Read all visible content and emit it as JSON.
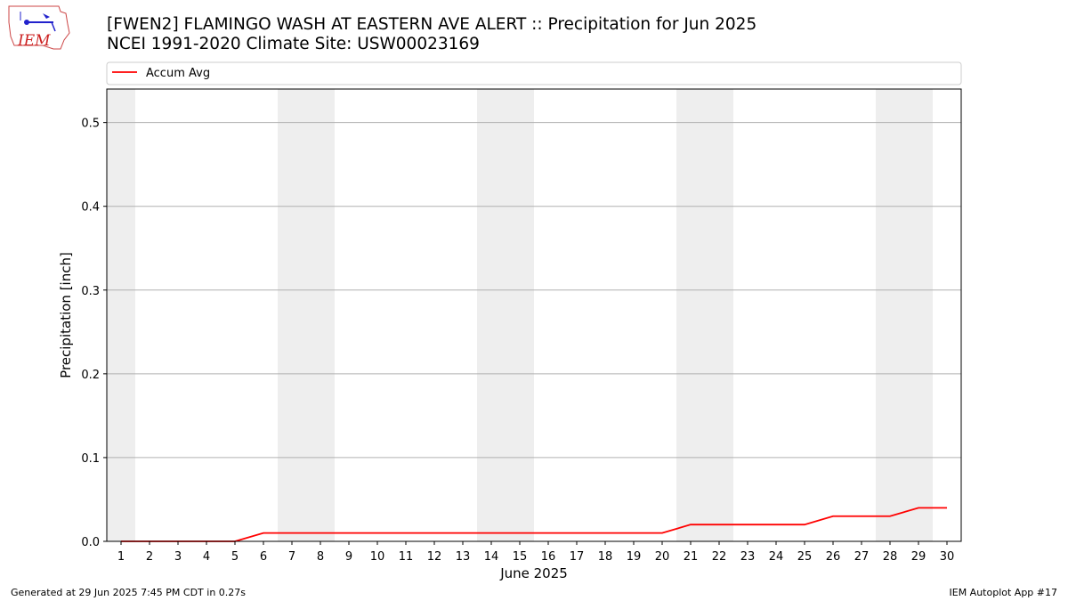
{
  "title": {
    "line1": "[FWEN2] FLAMINGO WASH AT EASTERN AVE ALERT :: Precipitation for Jun 2025",
    "line2": "NCEI 1991-2020 Climate Site: USW00023169"
  },
  "logo": {
    "text": "IEM",
    "icon": "iem-logo-icon"
  },
  "footer": {
    "generated": "Generated at 29 Jun 2025 7:45 PM CDT in 0.27s",
    "app": "IEM Autoplot App #17"
  },
  "colors": {
    "line": "#ff0000",
    "weekend_band": "#eeeeee",
    "grid": "#b0b0b0"
  },
  "chart_data": {
    "type": "line",
    "xlabel": "June 2025",
    "ylabel": "Precipitation [inch]",
    "xlim": [
      0.5,
      30.5
    ],
    "ylim": [
      0,
      0.54
    ],
    "yticks": [
      0.0,
      0.1,
      0.2,
      0.3,
      0.4,
      0.5
    ],
    "ytick_labels": [
      "0.0",
      "0.1",
      "0.2",
      "0.3",
      "0.4",
      "0.5"
    ],
    "xticks": [
      1,
      2,
      3,
      4,
      5,
      6,
      7,
      8,
      9,
      10,
      11,
      12,
      13,
      14,
      15,
      16,
      17,
      18,
      19,
      20,
      21,
      22,
      23,
      24,
      25,
      26,
      27,
      28,
      29,
      30
    ],
    "grid": "horizontal",
    "legend": {
      "placement": "top",
      "entries": [
        "Accum Avg"
      ]
    },
    "weekend_bands": [
      [
        0.5,
        1.5
      ],
      [
        6.5,
        8.5
      ],
      [
        13.5,
        15.5
      ],
      [
        20.5,
        22.5
      ],
      [
        27.5,
        29.5
      ]
    ],
    "series": [
      {
        "name": "Accum Avg",
        "color": "#ff0000",
        "x": [
          1,
          2,
          3,
          4,
          5,
          6,
          7,
          8,
          9,
          10,
          11,
          12,
          13,
          14,
          15,
          16,
          17,
          18,
          19,
          20,
          21,
          22,
          23,
          24,
          25,
          26,
          27,
          28,
          29,
          30
        ],
        "y": [
          0,
          0,
          0,
          0,
          0,
          0.01,
          0.01,
          0.01,
          0.01,
          0.01,
          0.01,
          0.01,
          0.01,
          0.01,
          0.01,
          0.01,
          0.01,
          0.01,
          0.01,
          0.01,
          0.02,
          0.02,
          0.02,
          0.02,
          0.02,
          0.03,
          0.03,
          0.03,
          0.04,
          0.04
        ]
      }
    ]
  }
}
